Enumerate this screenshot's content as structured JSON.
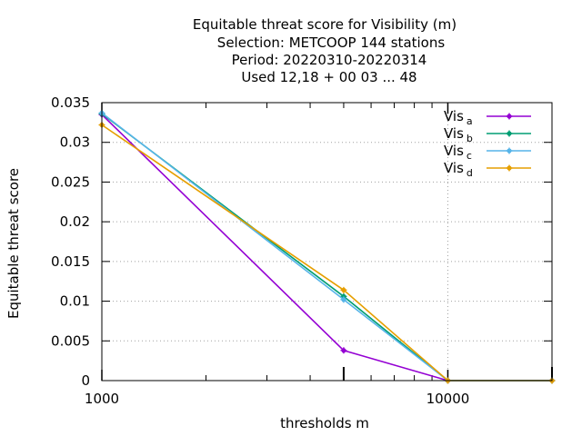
{
  "chart_data": {
    "type": "line",
    "title_lines": [
      "Equitable threat score  for Visibility (m)",
      "Selection: METCOOP    144 stations",
      "Period: 20220310-20220314",
      "Used  12,18 + 00 03 ... 48"
    ],
    "xlabel": "thresholds m",
    "ylabel": "Equitable threat score",
    "x_scale": "log",
    "xlim": [
      1000,
      20000
    ],
    "ylim": [
      0,
      0.035
    ],
    "x_ticks": [
      {
        "value": 1000,
        "label": "1000"
      },
      {
        "value": 10000,
        "label": "10000"
      }
    ],
    "y_ticks": [
      {
        "value": 0,
        "label": "0"
      },
      {
        "value": 0.005,
        "label": "0.005"
      },
      {
        "value": 0.01,
        "label": "0.01"
      },
      {
        "value": 0.015,
        "label": "0.015"
      },
      {
        "value": 0.02,
        "label": "0.02"
      },
      {
        "value": 0.025,
        "label": "0.025"
      },
      {
        "value": 0.03,
        "label": "0.03"
      },
      {
        "value": 0.035,
        "label": "0.035"
      }
    ],
    "grid": true,
    "legend_position": "top-right",
    "series": [
      {
        "name": "Vis",
        "sub": "a",
        "color": "#9400d3",
        "x": [
          1000,
          5000,
          10000,
          20000
        ],
        "y": [
          0.0335,
          0.0038,
          0.0,
          0.0
        ]
      },
      {
        "name": "Vis",
        "sub": "b",
        "color": "#009e73",
        "x": [
          1000,
          5000,
          10000,
          20000
        ],
        "y": [
          0.0336,
          0.0106,
          0.0,
          0.0
        ]
      },
      {
        "name": "Vis",
        "sub": "c",
        "color": "#56b4e9",
        "x": [
          1000,
          5000,
          10000,
          20000
        ],
        "y": [
          0.0337,
          0.0102,
          0.0,
          0.0
        ]
      },
      {
        "name": "Vis",
        "sub": "d",
        "color": "#e69f00",
        "x": [
          1000,
          5000,
          10000,
          20000
        ],
        "y": [
          0.0322,
          0.0114,
          0.0,
          0.0
        ]
      }
    ]
  }
}
